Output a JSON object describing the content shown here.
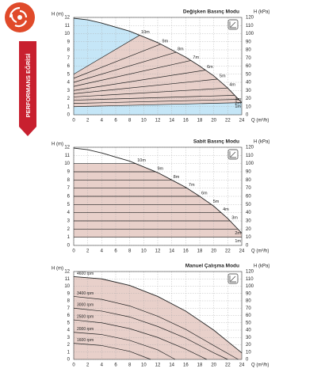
{
  "banner": {
    "text": "PERFORMANS EĞRİSİ"
  },
  "chart_data": [
    {
      "type": "line",
      "title": "Değişken Basınç Modu",
      "xlabel": "Q (m³/h)",
      "ylabel": "H (m)",
      "y2label": "H (kPa)",
      "xlim": [
        0,
        24
      ],
      "xticks": [
        0,
        2,
        4,
        6,
        8,
        10,
        12,
        14,
        16,
        18,
        20,
        22,
        24
      ],
      "ylim": [
        0,
        12
      ],
      "yticks": [
        0,
        1,
        2,
        3,
        4,
        5,
        6,
        7,
        8,
        9,
        10,
        11,
        12
      ],
      "y2lim": [
        0,
        120
      ],
      "y2ticks": [
        0,
        10,
        20,
        30,
        40,
        50,
        60,
        70,
        80,
        90,
        100,
        110,
        120
      ],
      "grid": true,
      "color": "#222222",
      "fill_color": "#e8d0ca",
      "region_color": "#c5e6f7",
      "series": [
        {
          "x": [
            0,
            2,
            4,
            6,
            8,
            10,
            12,
            14,
            16,
            18,
            20,
            22,
            24
          ],
          "values": [
            11.9,
            11.7,
            11.3,
            10.8,
            10.3,
            9.6,
            8.9,
            8.0,
            7.1,
            6.0,
            4.8,
            3.3,
            1.5
          ]
        },
        {
          "name": "10m",
          "x": [
            0,
            9.4
          ],
          "values": [
            5,
            9.8
          ]
        },
        {
          "name": "9m",
          "x": [
            0,
            12.4
          ],
          "values": [
            4.5,
            8.7
          ]
        },
        {
          "name": "8m",
          "x": [
            0,
            14.6
          ],
          "values": [
            4,
            7.7
          ]
        },
        {
          "name": "7m",
          "x": [
            0,
            16.8
          ],
          "values": [
            3.5,
            6.7
          ]
        },
        {
          "name": "6m",
          "x": [
            0,
            18.8
          ],
          "values": [
            3,
            5.5
          ]
        },
        {
          "name": "5m",
          "x": [
            0,
            20.6
          ],
          "values": [
            2.6,
            4.4
          ]
        },
        {
          "name": "4m",
          "x": [
            0,
            22
          ],
          "values": [
            2.2,
            3.3
          ]
        },
        {
          "name": "3m",
          "x": [
            0,
            23
          ],
          "values": [
            1.8,
            2.4
          ]
        },
        {
          "name": "2m",
          "x": [
            0,
            23.6
          ],
          "values": [
            1.4,
            1.9
          ]
        },
        {
          "name": "1m",
          "x": [
            0,
            24
          ],
          "values": [
            1,
            1.5
          ]
        }
      ]
    },
    {
      "type": "line",
      "title": "Sabit Basınç Modu",
      "xlabel": "Q (m³/h)",
      "ylabel": "H (m)",
      "y2label": "H (kPa)",
      "xlim": [
        0,
        24
      ],
      "xticks": [
        0,
        2,
        4,
        6,
        8,
        10,
        12,
        14,
        16,
        18,
        20,
        22,
        24
      ],
      "ylim": [
        0,
        12
      ],
      "yticks": [
        0,
        1,
        2,
        3,
        4,
        5,
        6,
        7,
        8,
        9,
        10,
        11,
        12
      ],
      "y2lim": [
        0,
        120
      ],
      "y2ticks": [
        0,
        10,
        20,
        30,
        40,
        50,
        60,
        70,
        80,
        90,
        100,
        110,
        120
      ],
      "grid": true,
      "color": "#222222",
      "fill_color": "#e8d0ca",
      "series": [
        {
          "x": [
            0,
            2,
            4,
            6,
            8,
            10,
            12,
            14,
            16,
            18,
            20,
            22,
            24
          ],
          "values": [
            11.9,
            11.7,
            11.3,
            10.8,
            10.3,
            9.6,
            8.9,
            8.0,
            7.1,
            6.0,
            4.8,
            3.3,
            1.5
          ]
        },
        {
          "name": "10m",
          "x": [
            0,
            8.86
          ],
          "values": [
            10,
            10
          ]
        },
        {
          "name": "9m",
          "x": [
            0,
            11.71
          ],
          "values": [
            9,
            9
          ]
        },
        {
          "name": "8m",
          "x": [
            0,
            14
          ],
          "values": [
            8,
            8
          ]
        },
        {
          "name": "7m",
          "x": [
            0,
            16.18
          ],
          "values": [
            7,
            7
          ]
        },
        {
          "name": "6m",
          "x": [
            0,
            18
          ],
          "values": [
            6,
            6
          ]
        },
        {
          "name": "5m",
          "x": [
            0,
            19.67
          ],
          "values": [
            5,
            5
          ]
        },
        {
          "name": "4m",
          "x": [
            0,
            21.07
          ],
          "values": [
            4,
            4
          ]
        },
        {
          "name": "3m",
          "x": [
            0,
            22.33
          ],
          "values": [
            3,
            3
          ]
        },
        {
          "name": "2m",
          "x": [
            0,
            23.44
          ],
          "values": [
            2,
            2
          ]
        },
        {
          "name": "1m",
          "x": [
            0,
            24
          ],
          "values": [
            1,
            1
          ]
        }
      ]
    },
    {
      "type": "line",
      "title": "Manuel Çalışma Modu",
      "xlabel": "Q (m³/h)",
      "ylabel": "H (m)",
      "y2label": "H (kPa)",
      "xlim": [
        0,
        24
      ],
      "xticks": [
        0,
        2,
        4,
        6,
        8,
        10,
        12,
        14,
        16,
        18,
        20,
        22,
        24
      ],
      "ylim": [
        0,
        12
      ],
      "yticks": [
        0,
        1,
        2,
        3,
        4,
        5,
        6,
        7,
        8,
        9,
        10,
        11,
        12
      ],
      "y2lim": [
        0,
        120
      ],
      "y2ticks": [
        0,
        10,
        20,
        30,
        40,
        50,
        60,
        70,
        80,
        90,
        100,
        110,
        120
      ],
      "grid": true,
      "color": "#222222",
      "fill_color": "#e8d0ca",
      "series": [
        {
          "name": "4600 rpm",
          "x": [
            0,
            4,
            8,
            12,
            16,
            20,
            24
          ],
          "values": [
            11.3,
            11.0,
            10.1,
            8.6,
            6.6,
            4.0,
            0.9
          ]
        },
        {
          "name": "3400 rpm",
          "x": [
            0,
            4,
            8,
            12,
            16,
            20,
            23.5
          ],
          "values": [
            8.6,
            8.2,
            7.3,
            5.9,
            4.1,
            1.9,
            0
          ]
        },
        {
          "name": "3000 rpm",
          "x": [
            0,
            4,
            8,
            12,
            16,
            20,
            22
          ],
          "values": [
            7.0,
            6.6,
            5.8,
            4.5,
            2.9,
            0.9,
            0
          ]
        },
        {
          "name": "2500 rpm",
          "x": [
            0,
            4,
            8,
            12,
            16,
            19
          ],
          "values": [
            5.4,
            5.0,
            4.2,
            3.0,
            1.4,
            0
          ]
        },
        {
          "name": "2000 rpm",
          "x": [
            0,
            4,
            8,
            12,
            14.5
          ],
          "values": [
            3.7,
            3.4,
            2.6,
            1.3,
            0
          ]
        },
        {
          "name": "1600 rpm",
          "x": [
            0,
            4,
            8,
            11
          ],
          "values": [
            2.2,
            1.9,
            1.1,
            0
          ]
        }
      ]
    }
  ]
}
